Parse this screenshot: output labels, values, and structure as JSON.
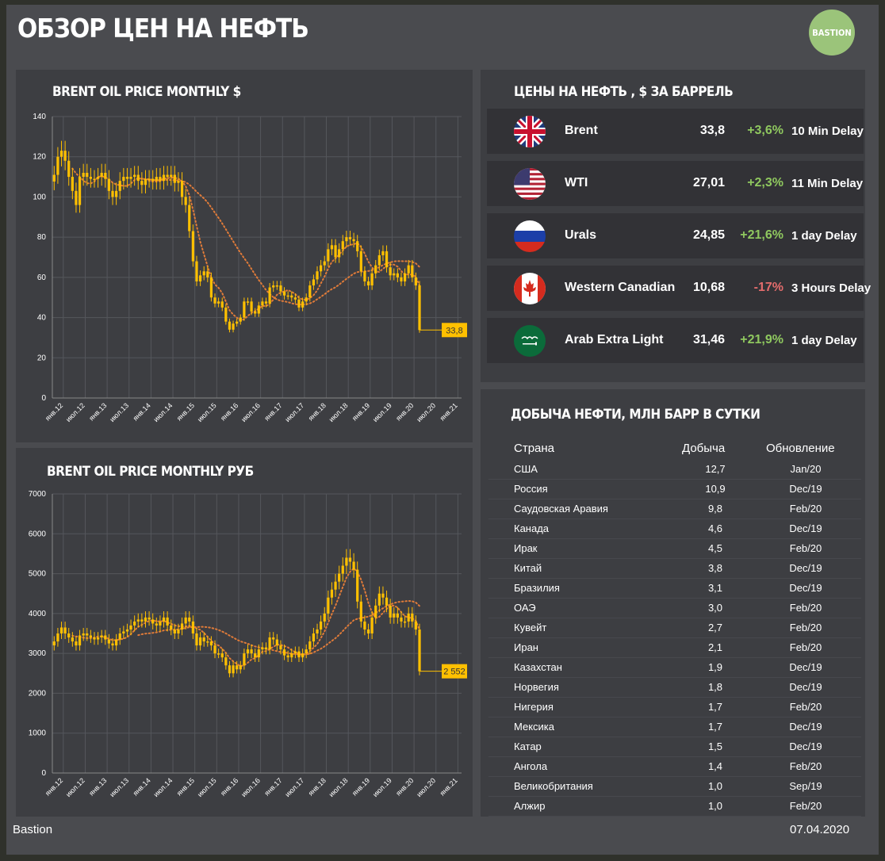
{
  "title": "ОБЗОР ЦЕН НА НЕФТЬ",
  "logo": "BASTION",
  "colors": {
    "accent": "#ffc000",
    "up": "#8fc85f",
    "down": "#e36c6c",
    "panel": "#3d3e42",
    "logo": "#9bc47a"
  },
  "charts": {
    "usd_title": "BRENT OIL PRICE MONTHLY $",
    "rub_title": "BRENT OIL PRICE MONTHLY РУБ"
  },
  "chart_data": [
    {
      "type": "candlestick",
      "title": "BRENT OIL PRICE MONTHLY $",
      "ylim": [
        0,
        140
      ],
      "yticks": [
        "0",
        "20",
        "40",
        "60",
        "80",
        "100",
        "120",
        "140"
      ],
      "xticks": [
        "янв.12",
        "июл.12",
        "янв.13",
        "июл.13",
        "янв.14",
        "июл.14",
        "янв.15",
        "июл.15",
        "янв.16",
        "июл.16",
        "янв.17",
        "июл.17",
        "янв.18",
        "июл.18",
        "янв.19",
        "июл.19",
        "янв.20",
        "июл.20",
        "янв.21"
      ],
      "last_label": "33,8",
      "close": [
        111,
        120,
        123,
        118,
        110,
        103,
        96,
        110,
        112,
        110,
        109,
        109,
        110,
        112,
        109,
        103,
        100,
        103,
        108,
        110,
        109,
        110,
        111,
        108,
        106,
        109,
        109,
        108,
        110,
        108,
        111,
        110,
        111,
        107,
        108,
        100,
        96,
        83,
        68,
        58,
        61,
        63,
        60,
        50,
        47,
        48,
        45,
        38,
        34,
        37,
        38,
        40,
        48,
        48,
        43,
        42,
        46,
        48,
        47,
        55,
        56,
        56,
        53,
        51,
        51,
        50,
        49,
        45,
        48,
        50,
        56,
        59,
        63,
        66,
        68,
        74,
        76,
        70,
        74,
        78,
        80,
        79,
        78,
        73,
        63,
        58,
        56,
        62,
        66,
        71,
        73,
        65,
        61,
        62,
        60,
        58,
        62,
        66,
        60,
        56,
        33.8
      ],
      "series": [
        {
          "name": "MA short (dotted)",
          "style": "dotted"
        },
        {
          "name": "MA long (dotted)",
          "style": "dotted"
        }
      ]
    },
    {
      "type": "candlestick",
      "title": "BRENT OIL PRICE MONTHLY РУБ",
      "ylim": [
        0,
        7000
      ],
      "yticks": [
        "0",
        "1000",
        "2000",
        "3000",
        "4000",
        "5000",
        "6000",
        "7000"
      ],
      "xticks": [
        "янв.12",
        "июл.12",
        "янв.13",
        "июл.13",
        "янв.14",
        "июл.14",
        "янв.15",
        "июл.15",
        "янв.16",
        "июл.16",
        "янв.17",
        "июл.17",
        "янв.18",
        "июл.18",
        "янв.19",
        "июл.19",
        "янв.20",
        "июл.20",
        "янв.21"
      ],
      "last_label": "2 552",
      "close": [
        3300,
        3500,
        3650,
        3500,
        3400,
        3300,
        3200,
        3450,
        3500,
        3450,
        3400,
        3350,
        3400,
        3450,
        3350,
        3250,
        3200,
        3350,
        3500,
        3550,
        3600,
        3700,
        3800,
        3850,
        3800,
        3900,
        3850,
        3750,
        3700,
        3800,
        3900,
        3700,
        3600,
        3500,
        3600,
        3750,
        3900,
        3800,
        3500,
        3200,
        3400,
        3300,
        3300,
        3200,
        3000,
        3000,
        2900,
        2700,
        2500,
        2700,
        2600,
        2700,
        3000,
        3100,
        3000,
        2900,
        3100,
        3150,
        3100,
        3400,
        3350,
        3200,
        3100,
        2950,
        2900,
        3000,
        3050,
        2900,
        3000,
        3100,
        3300,
        3500,
        3600,
        3800,
        4000,
        4400,
        4600,
        4800,
        5000,
        5200,
        5400,
        5300,
        5100,
        4300,
        3800,
        3600,
        3500,
        3900,
        4200,
        4500,
        4400,
        4200,
        3900,
        4000,
        3900,
        3800,
        3800,
        4000,
        3800,
        3600,
        2552
      ]
    }
  ],
  "prices": {
    "title": "ЦЕНЫ НА НЕФТЬ , $ ЗА БАРРЕЛЬ",
    "rows": [
      {
        "name": "Brent",
        "value": "33,8",
        "change": "+3,6%",
        "dir": "up",
        "delay": "10 Min Delay",
        "flag": "uk-flag-icon"
      },
      {
        "name": "WTI",
        "value": "27,01",
        "change": "+2,3%",
        "dir": "up",
        "delay": "11 Min Delay",
        "flag": "us-flag-icon"
      },
      {
        "name": "Urals",
        "value": "24,85",
        "change": "+21,6%",
        "dir": "up",
        "delay": "1 day Delay",
        "flag": "russia-flag-icon"
      },
      {
        "name": "Western Canadian",
        "value": "10,68",
        "change": "-17%",
        "dir": "down",
        "delay": "3 Hours Delay",
        "flag": "canada-flag-icon"
      },
      {
        "name": "Arab Extra Light",
        "value": "31,46",
        "change": "+21,9%",
        "dir": "up",
        "delay": "1 day Delay",
        "flag": "saudi-flag-icon"
      }
    ]
  },
  "production": {
    "title": "ДОБЫЧА НЕФТИ, МЛН БАРР В СУТКИ",
    "headers": {
      "country": "Страна",
      "output": "Добыча",
      "updated": "Обновление"
    },
    "rows": [
      {
        "country": "США",
        "output": "12,7",
        "updated": "Jan/20"
      },
      {
        "country": "Россия",
        "output": "10,9",
        "updated": "Dec/19"
      },
      {
        "country": "Саудовская Аравия",
        "output": "9,8",
        "updated": "Feb/20"
      },
      {
        "country": "Канада",
        "output": "4,6",
        "updated": "Dec/19"
      },
      {
        "country": "Ирак",
        "output": "4,5",
        "updated": "Feb/20"
      },
      {
        "country": "Китай",
        "output": "3,8",
        "updated": "Dec/19"
      },
      {
        "country": "Бразилия",
        "output": "3,1",
        "updated": "Dec/19"
      },
      {
        "country": "ОАЭ",
        "output": "3,0",
        "updated": "Feb/20"
      },
      {
        "country": "Кувейт",
        "output": "2,7",
        "updated": "Feb/20"
      },
      {
        "country": "Иран",
        "output": "2,1",
        "updated": "Feb/20"
      },
      {
        "country": "Казахстан",
        "output": "1,9",
        "updated": "Dec/19"
      },
      {
        "country": "Норвегия",
        "output": "1,8",
        "updated": "Dec/19"
      },
      {
        "country": "Нигерия",
        "output": "1,7",
        "updated": "Feb/20"
      },
      {
        "country": "Мексика",
        "output": "1,7",
        "updated": "Dec/19"
      },
      {
        "country": "Катар",
        "output": "1,5",
        "updated": "Dec/19"
      },
      {
        "country": "Ангола",
        "output": "1,4",
        "updated": "Feb/20"
      },
      {
        "country": "Великобритания",
        "output": "1,0",
        "updated": "Sep/19"
      },
      {
        "country": "Алжир",
        "output": "1,0",
        "updated": "Feb/20"
      }
    ]
  },
  "footer": {
    "left": "Bastion",
    "right": "07.04.2020"
  }
}
